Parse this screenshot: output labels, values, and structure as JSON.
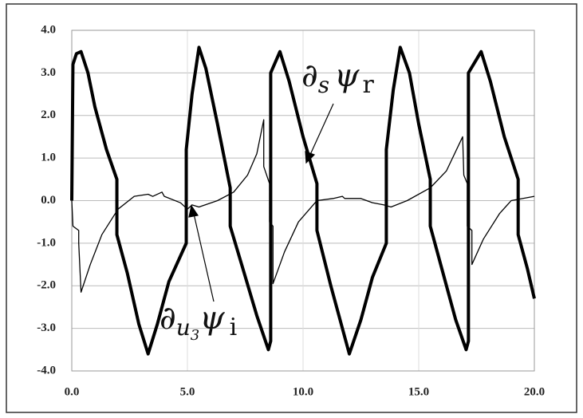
{
  "chart_data": {
    "type": "line",
    "annotations": [
      {
        "parts": [
          "∂",
          "s",
          "ψ",
          "r"
        ]
      },
      {
        "parts": [
          "∂",
          "u",
          "3",
          "ψ",
          "i"
        ]
      }
    ],
    "series": [
      {
        "color": "#000000",
        "width": 4,
        "x": [
          0,
          0.05,
          0.2,
          0.4,
          0.7,
          1.0,
          1.5,
          1.95,
          1.95,
          2.4,
          2.9,
          3.3,
          3.7,
          4.2,
          4.95,
          4.95,
          5.2,
          5.5,
          5.8,
          6.3,
          6.85,
          6.85,
          7.4,
          8.0,
          8.5,
          8.6,
          8.6,
          9.0,
          9.4,
          10.0,
          10.6,
          10.6,
          11.2,
          12.0,
          12.5,
          13.0,
          13.6,
          13.6,
          13.9,
          14.2,
          14.6,
          15.0,
          15.5,
          15.5,
          16.1,
          16.6,
          17.05,
          17.15,
          17.15,
          17.7,
          18.1,
          18.7,
          19.3,
          19.3,
          19.7,
          20
        ],
        "values": [
          0,
          3.2,
          3.45,
          3.5,
          3.0,
          2.2,
          1.2,
          0.5,
          -0.8,
          -1.7,
          -2.9,
          -3.6,
          -2.9,
          -1.9,
          -1.0,
          1.2,
          2.5,
          3.6,
          3.1,
          1.8,
          0.3,
          -0.6,
          -1.6,
          -2.7,
          -3.5,
          -3.3,
          3.0,
          3.5,
          2.8,
          1.5,
          0.4,
          -0.7,
          -2.0,
          -3.6,
          -2.8,
          -1.8,
          -1.0,
          1.2,
          2.6,
          3.6,
          3.0,
          1.8,
          0.5,
          -0.6,
          -1.8,
          -2.8,
          -3.5,
          -3.3,
          3.0,
          3.5,
          2.8,
          1.5,
          0.5,
          -0.8,
          -1.6,
          -2.3
        ]
      },
      {
        "color": "#000000",
        "width": 1.3,
        "x": [
          0,
          0.05,
          0.3,
          0.3,
          0.4,
          0.8,
          1.3,
          2.0,
          2.7,
          3.3,
          3.5,
          3.9,
          4.0,
          4.7,
          5.0,
          5.2,
          5.5,
          6.3,
          7.0,
          7.6,
          8.0,
          8.3,
          8.3,
          8.55,
          8.55,
          8.7,
          8.7,
          9.2,
          9.8,
          10.6,
          11.3,
          11.7,
          11.8,
          12.5,
          13.0,
          13.5,
          13.8,
          14.5,
          15.5,
          16.2,
          16.9,
          16.95,
          17.1,
          17.1,
          17.3,
          17.3,
          17.8,
          18.5,
          19.0,
          20
        ],
        "values": [
          0,
          -0.6,
          -0.7,
          -1.0,
          -2.15,
          -1.5,
          -0.8,
          -0.2,
          0.1,
          0.15,
          0.1,
          0.2,
          0.1,
          -0.05,
          -0.2,
          -0.1,
          -0.15,
          0.0,
          0.2,
          0.6,
          1.1,
          1.9,
          0.8,
          0.4,
          -0.5,
          -0.6,
          -1.95,
          -1.2,
          -0.5,
          0,
          0.05,
          0.1,
          0.05,
          0.05,
          -0.05,
          -0.1,
          -0.15,
          0.0,
          0.3,
          0.7,
          1.5,
          0.6,
          0.4,
          -0.6,
          -0.7,
          -1.5,
          -0.9,
          -0.3,
          0.0,
          0.1
        ]
      }
    ],
    "xlim": [
      0,
      20
    ],
    "xticks": [
      {
        "value": 0,
        "label": "0.0"
      },
      {
        "value": 5,
        "label": "5.0"
      },
      {
        "value": 10,
        "label": "10.0"
      },
      {
        "value": 15,
        "label": "15.0"
      },
      {
        "value": 20,
        "label": "20.0"
      }
    ],
    "ylim": [
      -4,
      4
    ],
    "yticks": [
      {
        "value": -4,
        "label": "-4.0"
      },
      {
        "value": -3,
        "label": "-3.0"
      },
      {
        "value": -2,
        "label": "-2.0"
      },
      {
        "value": -1,
        "label": "-1.0"
      },
      {
        "value": 0,
        "label": "0.0"
      },
      {
        "value": 1,
        "label": "1.0"
      },
      {
        "value": 2,
        "label": "2.0"
      },
      {
        "value": 3,
        "label": "3.0"
      },
      {
        "value": 4,
        "label": "4.0"
      }
    ],
    "grid": true
  }
}
